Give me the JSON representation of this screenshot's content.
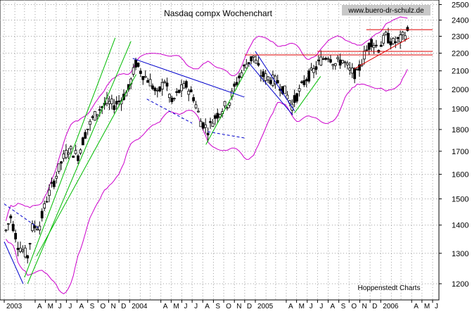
{
  "chart_data": {
    "type": "candlestick",
    "title": "Nasdaq compx Wochenchart",
    "watermark": "www.buero-dr-schulz.de",
    "source": "Hoppenstedt Charts",
    "scale": "log",
    "ylim": [
      1150,
      2530
    ],
    "y_ticks": [
      1200,
      1300,
      1400,
      1500,
      1600,
      1700,
      1800,
      1900,
      2000,
      2100,
      2200,
      2300,
      2400,
      2500
    ],
    "x_range": [
      "2003-01",
      "2006-06"
    ],
    "x_ticks": [
      {
        "label": "2003",
        "date": "2003-01"
      },
      {
        "label": "A",
        "date": "2003-04"
      },
      {
        "label": "M",
        "date": "2003-05"
      },
      {
        "label": "J",
        "date": "2003-06"
      },
      {
        "label": "J",
        "date": "2003-07"
      },
      {
        "label": "A",
        "date": "2003-08"
      },
      {
        "label": "S",
        "date": "2003-09"
      },
      {
        "label": "O",
        "date": "2003-10"
      },
      {
        "label": "N",
        "date": "2003-11"
      },
      {
        "label": "D",
        "date": "2003-12"
      },
      {
        "label": "2004",
        "date": "2004-01"
      },
      {
        "label": "A",
        "date": "2004-04"
      },
      {
        "label": "M",
        "date": "2004-05"
      },
      {
        "label": "J",
        "date": "2004-06"
      },
      {
        "label": "J",
        "date": "2004-07"
      },
      {
        "label": "A",
        "date": "2004-08"
      },
      {
        "label": "S",
        "date": "2004-09"
      },
      {
        "label": "O",
        "date": "2004-10"
      },
      {
        "label": "N",
        "date": "2004-11"
      },
      {
        "label": "D",
        "date": "2004-12"
      },
      {
        "label": "2005",
        "date": "2005-01"
      },
      {
        "label": "A",
        "date": "2005-04"
      },
      {
        "label": "M",
        "date": "2005-05"
      },
      {
        "label": "J",
        "date": "2005-06"
      },
      {
        "label": "J",
        "date": "2005-07"
      },
      {
        "label": "A",
        "date": "2005-08"
      },
      {
        "label": "S",
        "date": "2005-09"
      },
      {
        "label": "O",
        "date": "2005-10"
      },
      {
        "label": "N",
        "date": "2005-11"
      },
      {
        "label": "D",
        "date": "2005-12"
      },
      {
        "label": "2006",
        "date": "2006-01"
      },
      {
        "label": "A",
        "date": "2006-04"
      },
      {
        "label": "M",
        "date": "2006-05"
      },
      {
        "label": "J",
        "date": "2006-06"
      }
    ],
    "grid": true,
    "series": [
      {
        "kind": "price",
        "points": [
          [
            "2003-01-06",
            1380
          ],
          [
            "2003-01-20",
            1430
          ],
          [
            "2003-02-10",
            1330
          ],
          [
            "2003-03-10",
            1290
          ],
          [
            "2003-03-24",
            1390
          ],
          [
            "2003-04-14",
            1400
          ],
          [
            "2003-05-05",
            1500
          ],
          [
            "2003-05-26",
            1570
          ],
          [
            "2003-06-16",
            1650
          ],
          [
            "2003-07-07",
            1710
          ],
          [
            "2003-08-04",
            1680
          ],
          [
            "2003-08-25",
            1780
          ],
          [
            "2003-09-15",
            1850
          ],
          [
            "2003-10-06",
            1900
          ],
          [
            "2003-10-27",
            1930
          ],
          [
            "2003-11-17",
            1920
          ],
          [
            "2003-12-08",
            1950
          ],
          [
            "2003-12-29",
            2000
          ],
          [
            "2004-01-19",
            2140
          ],
          [
            "2004-02-09",
            2080
          ],
          [
            "2004-03-01",
            2040
          ],
          [
            "2004-03-22",
            1970
          ],
          [
            "2004-04-12",
            2050
          ],
          [
            "2004-05-03",
            1930
          ],
          [
            "2004-05-24",
            1990
          ],
          [
            "2004-06-14",
            2020
          ],
          [
            "2004-07-05",
            1960
          ],
          [
            "2004-07-26",
            1840
          ],
          [
            "2004-08-16",
            1800
          ],
          [
            "2004-09-06",
            1860
          ],
          [
            "2004-09-27",
            1900
          ],
          [
            "2004-10-18",
            1940
          ],
          [
            "2004-11-08",
            2040
          ],
          [
            "2004-12-06",
            2140
          ],
          [
            "2004-12-27",
            2180
          ],
          [
            "2005-01-17",
            2080
          ],
          [
            "2005-02-07",
            2060
          ],
          [
            "2005-03-07",
            2040
          ],
          [
            "2005-03-28",
            1990
          ],
          [
            "2005-04-18",
            1920
          ],
          [
            "2005-05-09",
            1990
          ],
          [
            "2005-05-30",
            2060
          ],
          [
            "2005-06-20",
            2100
          ],
          [
            "2005-07-11",
            2160
          ],
          [
            "2005-08-01",
            2190
          ],
          [
            "2005-08-22",
            2140
          ],
          [
            "2005-09-12",
            2160
          ],
          [
            "2005-10-03",
            2100
          ],
          [
            "2005-10-24",
            2080
          ],
          [
            "2005-11-14",
            2190
          ],
          [
            "2005-12-05",
            2270
          ],
          [
            "2005-12-26",
            2230
          ],
          [
            "2006-01-16",
            2300
          ],
          [
            "2006-02-06",
            2260
          ],
          [
            "2006-02-27",
            2280
          ],
          [
            "2006-03-20",
            2330
          ]
        ]
      }
    ],
    "bollinger_bands": {
      "color": "#cc00cc"
    },
    "trendlines_color": "#00bb00",
    "channel_color": "#0000cc",
    "resistance_color": "#dd0000",
    "resistance_levels": [
      2190,
      2210,
      2340
    ]
  }
}
